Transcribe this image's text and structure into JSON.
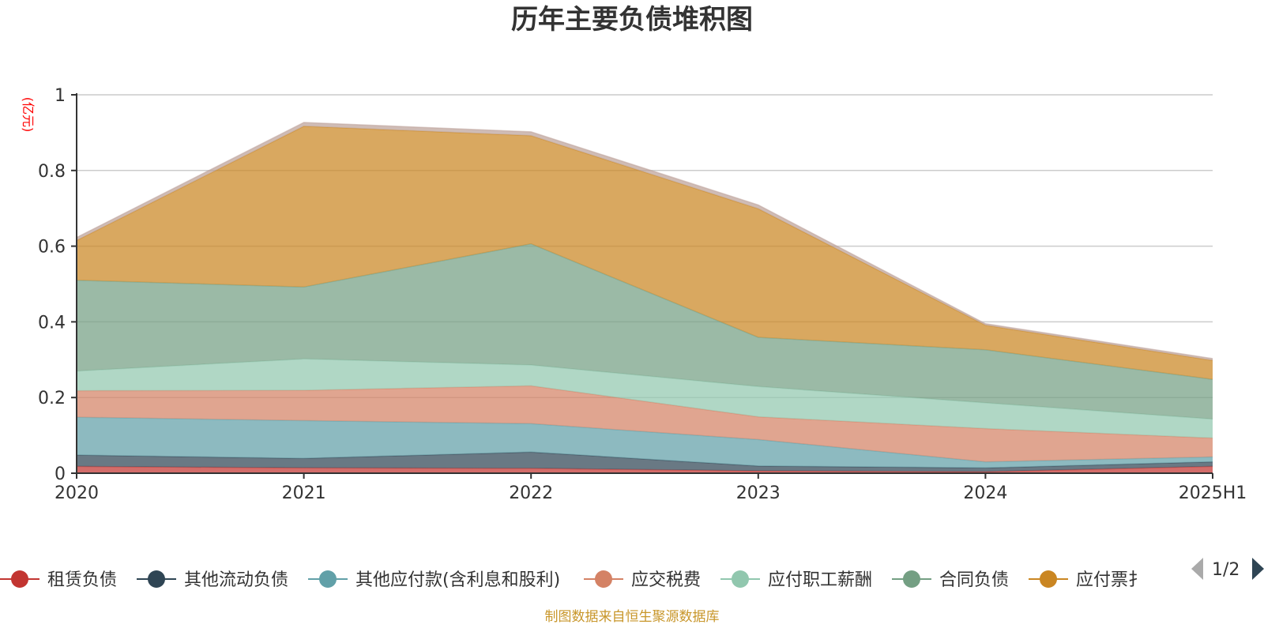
{
  "title": "历年主要负债堆积图",
  "unit_label": "(亿元)",
  "footer": "制图数据来自恒生聚源数据库",
  "legend_page": "1/2",
  "chart_data": {
    "type": "area",
    "stacked": true,
    "x": [
      "2020",
      "2021",
      "2022",
      "2023",
      "2024",
      "2025H1"
    ],
    "ylim": [
      0,
      1
    ],
    "yticks": [
      0,
      0.2,
      0.4,
      0.6,
      0.8,
      1
    ],
    "ytick_labels": [
      "0",
      "0.2",
      "0.4",
      "0.6",
      "0.8",
      "1"
    ],
    "grid": true,
    "legend_position": "bottom",
    "series": [
      {
        "name": "租赁负债",
        "color": "#c23531",
        "values": [
          0.018,
          0.014,
          0.013,
          0.006,
          0.004,
          0.018
        ],
        "in_legend": true
      },
      {
        "name": "其他流动负债",
        "color": "#2f4554",
        "values": [
          0.03,
          0.025,
          0.043,
          0.013,
          0.01,
          0.012
        ],
        "in_legend": true
      },
      {
        "name": "其他应付款(含利息和股利)",
        "color": "#61a0a8",
        "values": [
          0.1,
          0.1,
          0.075,
          0.07,
          0.016,
          0.013
        ],
        "in_legend": true
      },
      {
        "name": "应交税费",
        "color": "#d48265",
        "values": [
          0.07,
          0.08,
          0.1,
          0.06,
          0.088,
          0.05
        ],
        "in_legend": true
      },
      {
        "name": "应付职工薪酬",
        "color": "#91c7ae",
        "values": [
          0.052,
          0.083,
          0.055,
          0.08,
          0.068,
          0.05
        ],
        "in_legend": true
      },
      {
        "name": "合同负债",
        "color": "#749f83",
        "values": [
          0.24,
          0.19,
          0.32,
          0.13,
          0.14,
          0.105
        ],
        "in_legend": true
      },
      {
        "name": "应付票据",
        "display_name": "应付票扌",
        "color": "#ca8622",
        "values": [
          0.105,
          0.425,
          0.286,
          0.34,
          0.065,
          0.05
        ],
        "in_legend": true
      },
      {
        "name": "",
        "color": "#bda29a",
        "values": [
          0.008,
          0.01,
          0.01,
          0.01,
          0.004,
          0.005
        ],
        "in_legend": false
      }
    ]
  }
}
